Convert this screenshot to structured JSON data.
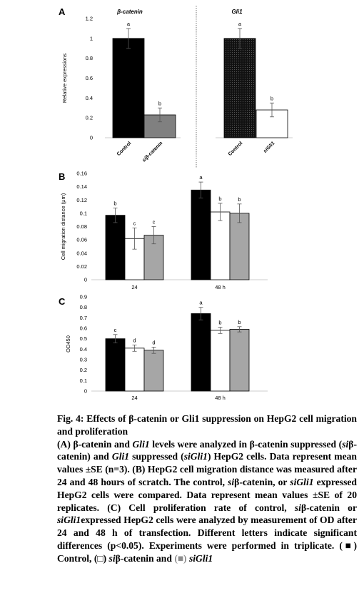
{
  "chart_data": [
    {
      "panel_label": "A",
      "type": "bar",
      "ylabel": "Relative expressions",
      "ylim": [
        0,
        1.2
      ],
      "yticks": [
        "0",
        "0.2",
        "0.4",
        "0.6",
        "0.8",
        "1",
        "1.2"
      ],
      "groups": [
        {
          "title": "β-catenin",
          "categories": [
            "Control",
            "siβ-catenin"
          ],
          "values": [
            1.0,
            0.23
          ],
          "errors": [
            0.1,
            0.07
          ],
          "letters": [
            "a",
            "b"
          ],
          "fills": [
            "#000000",
            "#808080"
          ]
        },
        {
          "title": "Gli1",
          "categories": [
            "Control",
            "siGli1"
          ],
          "values": [
            1.0,
            0.28
          ],
          "errors": [
            0.1,
            0.07
          ],
          "letters": [
            "a",
            "b"
          ],
          "fills": [
            "#1e1e1e",
            "#ffffff"
          ]
        }
      ]
    },
    {
      "panel_label": "B",
      "type": "bar",
      "ylabel": "Cell migration distance (μm)",
      "ylim": [
        0,
        0.16
      ],
      "yticks": [
        "0",
        "0.02",
        "0.04",
        "0.06",
        "0.08",
        "0.1",
        "0.12",
        "0.14",
        "0.16"
      ],
      "categories": [
        "24",
        "48 h"
      ],
      "series": [
        {
          "values": [
            0.097,
            0.135
          ],
          "errors": [
            0.011,
            0.012
          ],
          "letters": [
            "b",
            "a"
          ],
          "fill": "#000000"
        },
        {
          "values": [
            0.062,
            0.102
          ],
          "errors": [
            0.016,
            0.013
          ],
          "letters": [
            "c",
            "b"
          ],
          "fill": "#ffffff"
        },
        {
          "values": [
            0.067,
            0.1
          ],
          "errors": [
            0.013,
            0.014
          ],
          "letters": [
            "c",
            "b"
          ],
          "fill": "#a6a6a6"
        }
      ]
    },
    {
      "panel_label": "C",
      "type": "bar",
      "ylabel": "OD450",
      "ylim": [
        0,
        0.9
      ],
      "yticks": [
        "0",
        "0.1",
        "0.2",
        "0.3",
        "0.4",
        "0.5",
        "0.6",
        "0.7",
        "0.8",
        "0.9"
      ],
      "categories": [
        "24",
        "48 h"
      ],
      "series": [
        {
          "values": [
            0.5,
            0.74
          ],
          "errors": [
            0.04,
            0.06
          ],
          "letters": [
            "c",
            "a"
          ],
          "fill": "#000000"
        },
        {
          "values": [
            0.41,
            0.58
          ],
          "errors": [
            0.03,
            0.03
          ],
          "letters": [
            "d",
            "b"
          ],
          "fill": "#ffffff"
        },
        {
          "values": [
            0.39,
            0.59
          ],
          "errors": [
            0.03,
            0.025
          ],
          "letters": [
            "d",
            "b"
          ],
          "fill": "#a6a6a6"
        }
      ]
    }
  ],
  "caption": {
    "title": "Fig. 4: Effects of β-catenin or Gli1 suppression on HepG2 cell migration and proliferation",
    "body_parts": [
      "(A) β-catenin and ",
      "Gli1",
      " levels were analyzed in β-catenin suppressed (",
      "si",
      "β-catenin) and ",
      "Gli1",
      " suppressed (",
      "siGli1",
      ") HepG2 cells. Data represent mean values ±SE (n=3). (B) HepG2 cell migration distance was measured after 24 and 48 hours of scratch. The control, ",
      "si",
      "β-catenin, or ",
      "siGli1",
      " expressed HepG2 cells were compared. Data represent mean values ±SE of 20 replicates. (C) Cell proliferation rate of control, ",
      "si",
      "β-catenin or ",
      "siGli1",
      "expressed HepG2 cells were analyzed by measurement of OD after 24 and 48 h of transfection. Different letters indicate significant differences (p<0.05). Experiments were performed in triplicate. ",
      "(■)",
      " Control, ",
      "(□)",
      " ",
      "si",
      "β-catenin and ",
      "(■)",
      " ",
      "siGli1"
    ]
  },
  "colors": {
    "black_bar": "#000000",
    "dark_bar": "#808080",
    "grey_bar": "#a6a6a6",
    "white_bar": "#ffffff",
    "legend_grey": "#8c8c8c"
  }
}
